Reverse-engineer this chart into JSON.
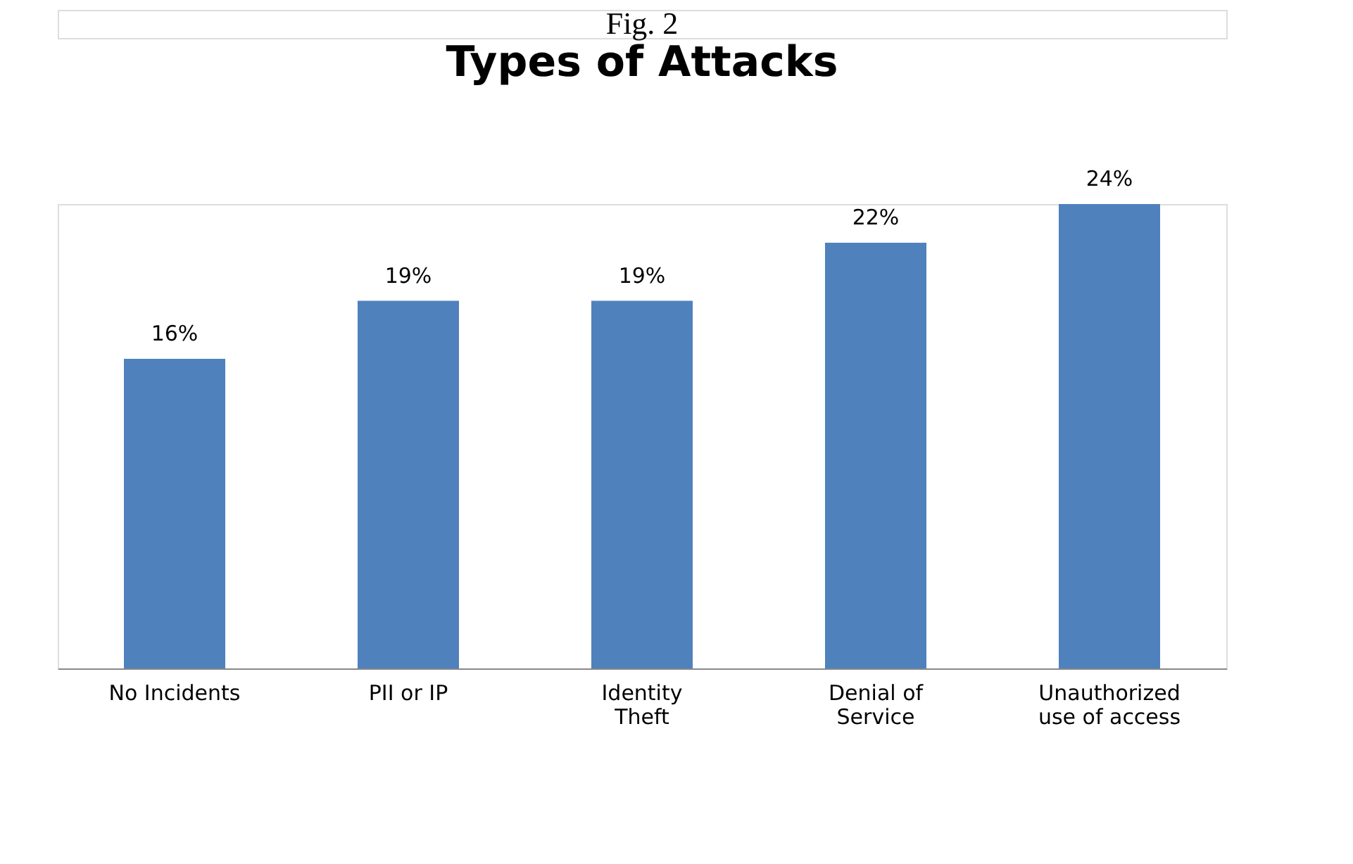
{
  "chart_data": {
    "type": "bar",
    "title": "Types of Attacks",
    "annotations": [
      "Fig. 2"
    ],
    "categories": [
      "No Incidents",
      "PII or IP",
      "Identity Theft",
      "Denial of Service",
      "Unauthorized use of access"
    ],
    "values": [
      16,
      19,
      19,
      22,
      24
    ],
    "value_labels": [
      "16%",
      "19%",
      "19%",
      "22%",
      "24%"
    ],
    "color": "#4f81bd",
    "grid": false,
    "tick_labels": "x"
  }
}
